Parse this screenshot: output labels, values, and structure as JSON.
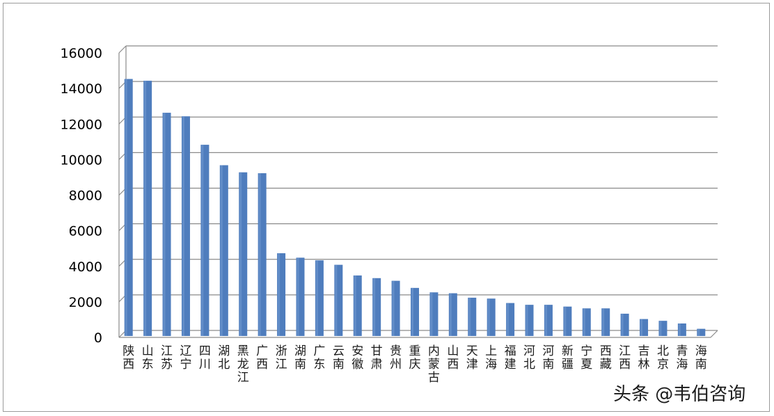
{
  "watermark": "头条 @韦伯咨询",
  "chart_data": {
    "type": "bar",
    "title": "",
    "xlabel": "",
    "ylabel": "",
    "ylim": [
      0,
      16000
    ],
    "yticks": [
      0,
      2000,
      4000,
      6000,
      8000,
      10000,
      12000,
      14000,
      16000
    ],
    "grid": true,
    "legend": "none",
    "bar_color": "#4f7dbd",
    "categories": [
      "陕西",
      "山东",
      "江苏",
      "辽宁",
      "四川",
      "湖北",
      "黑龙江",
      "广西",
      "浙江",
      "湖南",
      "广东",
      "云南",
      "安徽",
      "甘肃",
      "贵州",
      "重庆",
      "内蒙古",
      "山西",
      "天津",
      "上海",
      "福建",
      "河北",
      "河南",
      "新疆",
      "宁夏",
      "西藏",
      "江西",
      "吉林",
      "北京",
      "青海",
      "海南"
    ],
    "values": [
      14200,
      14100,
      12300,
      12100,
      10500,
      9350,
      8950,
      8900,
      4400,
      4150,
      4000,
      3750,
      3150,
      3000,
      2850,
      2450,
      2200,
      2150,
      1900,
      1850,
      1600,
      1500,
      1500,
      1400,
      1300,
      1300,
      1000,
      700,
      600,
      450,
      150
    ]
  }
}
